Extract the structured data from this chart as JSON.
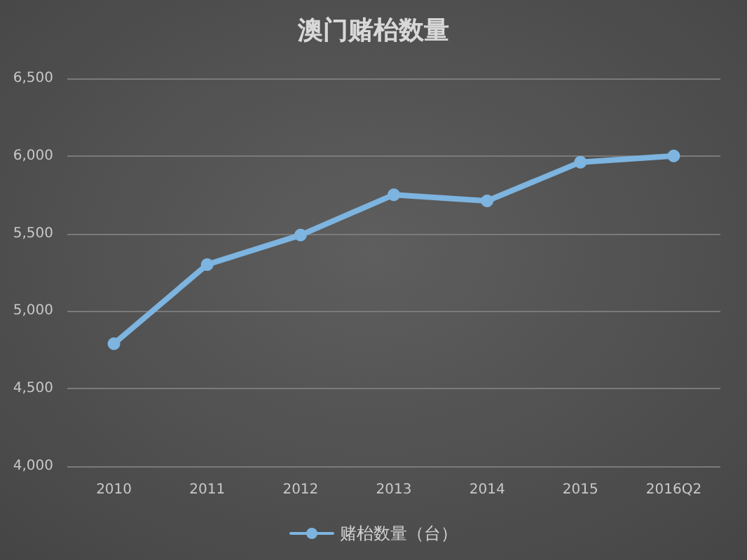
{
  "chart_data": {
    "type": "line",
    "title": "澳门赌枱数量",
    "categories": [
      "2010",
      "2011",
      "2012",
      "2013",
      "2014",
      "2015",
      "2016Q2"
    ],
    "series": [
      {
        "name": "赌枱数量（台）",
        "color": "#7db4e0",
        "values": [
          4790,
          5300,
          5490,
          5750,
          5710,
          5960,
          6000
        ]
      }
    ],
    "ylim": [
      4000,
      6500
    ],
    "yticks": [
      {
        "value": 4000,
        "label": "4,000"
      },
      {
        "value": 4500,
        "label": "4,500"
      },
      {
        "value": 5000,
        "label": "5,000"
      },
      {
        "value": 5500,
        "label": "5,500"
      },
      {
        "value": 6000,
        "label": "6,000"
      },
      {
        "value": 6500,
        "label": "6,500"
      }
    ],
    "grid": "y",
    "legend": "bottom",
    "marker": "circle",
    "line_style": "solid"
  }
}
